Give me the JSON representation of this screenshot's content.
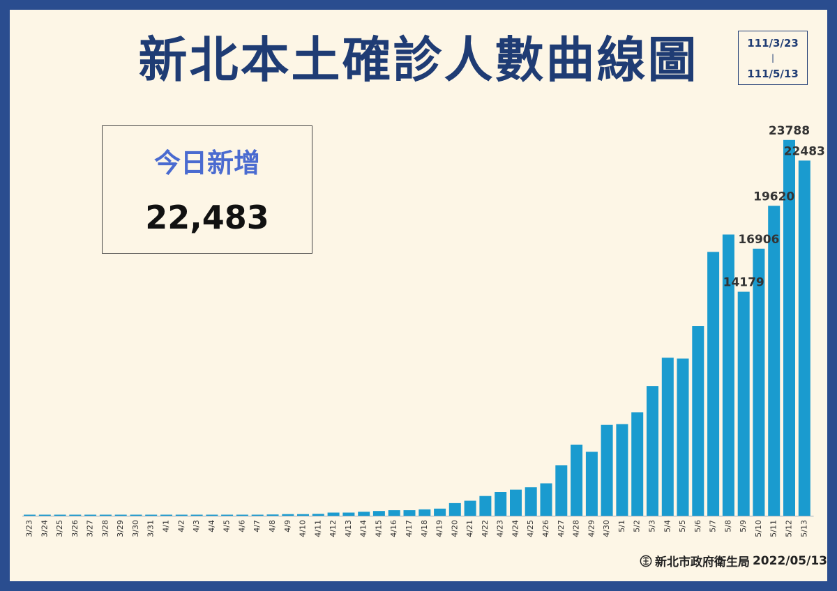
{
  "header": {
    "title": "新北本土確診人數曲線圖",
    "date_start": "111/3/23",
    "date_sep": "|",
    "date_end": "111/5/13"
  },
  "today": {
    "label": "今日新增",
    "value": "22,483"
  },
  "footer": {
    "org": "新北市政府衛生局",
    "date": "2022/05/13"
  },
  "colors": {
    "bar": "#1a9bcf",
    "frame": "#2a4d8f",
    "background": "#fdf6e6",
    "title": "#1f3c74",
    "today_label": "#4a6bd0"
  },
  "chart_data": {
    "type": "bar",
    "categories": [
      "3/23",
      "3/24",
      "3/25",
      "3/26",
      "3/27",
      "3/28",
      "3/29",
      "3/30",
      "3/31",
      "4/1",
      "4/2",
      "4/3",
      "4/4",
      "4/5",
      "4/6",
      "4/7",
      "4/8",
      "4/9",
      "4/10",
      "4/11",
      "4/12",
      "4/13",
      "4/14",
      "4/15",
      "4/16",
      "4/17",
      "4/18",
      "4/19",
      "4/20",
      "4/21",
      "4/22",
      "4/23",
      "4/24",
      "4/25",
      "4/26",
      "4/27",
      "4/28",
      "4/29",
      "4/30",
      "5/1",
      "5/2",
      "5/3",
      "5/4",
      "5/5",
      "5/6",
      "5/7",
      "5/8",
      "5/9",
      "5/10",
      "5/11",
      "5/12",
      "5/13"
    ],
    "values": [
      20,
      5,
      15,
      15,
      10,
      10,
      10,
      10,
      10,
      10,
      15,
      25,
      15,
      40,
      50,
      60,
      80,
      100,
      100,
      120,
      200,
      200,
      250,
      300,
      350,
      350,
      400,
      450,
      800,
      950,
      1250,
      1500,
      1650,
      1800,
      2050,
      3200,
      4500,
      4050,
      5750,
      5800,
      6550,
      8200,
      10000,
      9950,
      12000,
      16700,
      17800,
      14179,
      16906,
      19620,
      23788,
      22483
    ],
    "data_labels": [
      {
        "category": "5/9",
        "text": "14179"
      },
      {
        "category": "5/10",
        "text": "16906"
      },
      {
        "category": "5/11",
        "text": "19620"
      },
      {
        "category": "5/12",
        "text": "23788"
      },
      {
        "category": "5/13",
        "text": "22483"
      }
    ],
    "ylim": [
      0,
      24000
    ],
    "grid": false,
    "title": "",
    "xlabel": "",
    "ylabel": ""
  }
}
